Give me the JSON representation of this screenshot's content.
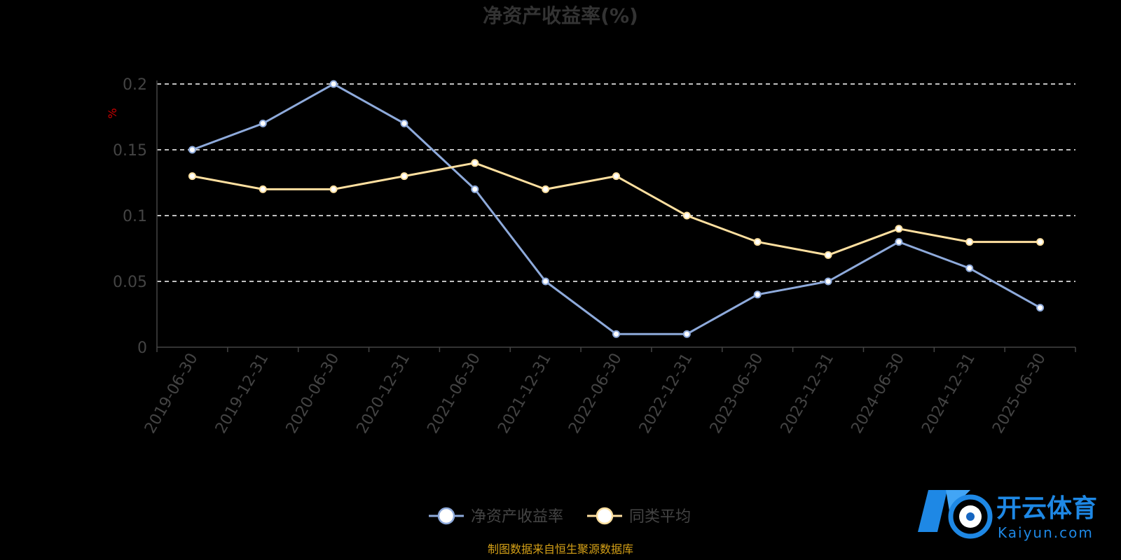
{
  "chart_data": {
    "type": "line",
    "title": "净资产收益率(%)",
    "ylabel": "%",
    "ylim": [
      0,
      0.2
    ],
    "yticks": [
      "0",
      "0.05",
      "0.1",
      "0.15",
      "0.2"
    ],
    "ytick_values": [
      0,
      0.05,
      0.1,
      0.15,
      0.2
    ],
    "grid": true,
    "legend_position": "bottom",
    "categories": [
      "2019-06-30",
      "2019-12-31",
      "2020-06-30",
      "2020-12-31",
      "2021-06-30",
      "2021-12-31",
      "2022-06-30",
      "2022-12-31",
      "2023-06-30",
      "2023-12-31",
      "2024-06-30",
      "2024-12-31",
      "2025-06-30"
    ],
    "series": [
      {
        "name": "净资产收益率",
        "color": "#8eaadb",
        "values": [
          0.15,
          0.17,
          0.2,
          0.17,
          0.12,
          0.05,
          0.01,
          0.01,
          0.04,
          0.05,
          0.08,
          0.06,
          0.03
        ]
      },
      {
        "name": "同类平均",
        "color": "#ffe0a0",
        "values": [
          0.13,
          0.12,
          0.12,
          0.13,
          0.14,
          0.12,
          0.13,
          0.1,
          0.08,
          0.07,
          0.09,
          0.08,
          0.08
        ]
      }
    ]
  },
  "footer": {
    "source": "制图数据来自恒生聚源数据库"
  },
  "watermark": {
    "logo_icon": "kaiyun-logo-icon",
    "cn": "开云体育",
    "en": "Kaiyun.com"
  }
}
